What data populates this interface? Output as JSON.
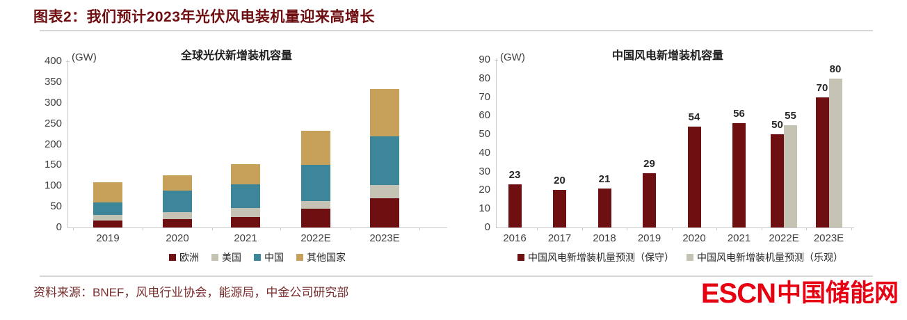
{
  "header": {
    "title": "图表2：我们预计2023年光伏风电装机量迎来高增长"
  },
  "footer": {
    "source": "资料来源：BNEF，风电行业协会，能源局，中金公司研究部",
    "logo_latin": "ESCN",
    "logo_cjk": "中国储能网"
  },
  "colors": {
    "title_maroon": "#6e0e10",
    "bar_maroon": "#6e1011",
    "bar_gray": "#c5c3b3",
    "bar_teal": "#3d8699",
    "bar_tan": "#c7a15a",
    "logo_red": "#e60012",
    "axis_gray": "#c9c9c9"
  },
  "chart_data": [
    {
      "type": "bar",
      "stacked": true,
      "title": "全球光伏新增装机容量",
      "unit": "(GW)",
      "categories": [
        "2019",
        "2020",
        "2021",
        "2022E",
        "2023E"
      ],
      "series": [
        {
          "name": "欧洲",
          "color": "#6e1011",
          "values": [
            17,
            20,
            25,
            45,
            70
          ]
        },
        {
          "name": "美国",
          "color": "#c5c3b3",
          "values": [
            13,
            17,
            22,
            18,
            32
          ]
        },
        {
          "name": "中国",
          "color": "#3d8699",
          "values": [
            30,
            51,
            57,
            87,
            118
          ]
        },
        {
          "name": "其他国家",
          "color": "#c7a15a",
          "values": [
            48,
            38,
            49,
            83,
            113
          ]
        }
      ],
      "totals": [
        108,
        126,
        153,
        233,
        333
      ],
      "ylim": [
        0,
        400
      ],
      "ytick_step": 50,
      "grid": false,
      "legend_position": "bottom",
      "data_labels": false
    },
    {
      "type": "bar",
      "stacked": false,
      "title": "中国风电新增装机容量",
      "unit": "(GW)",
      "categories": [
        "2016",
        "2017",
        "2018",
        "2019",
        "2020",
        "2021",
        "2022E",
        "2023E"
      ],
      "series": [
        {
          "name": "中国风电新增装机量预测（保守）",
          "color": "#6e1011",
          "values": [
            23,
            20,
            21,
            29,
            54,
            56,
            50,
            70
          ]
        },
        {
          "name": "中国风电新增装机量预测（乐观）",
          "color": "#c5c3b3",
          "values": [
            null,
            null,
            null,
            null,
            null,
            null,
            55,
            80
          ]
        }
      ],
      "ylim": [
        0,
        90
      ],
      "ytick_step": 10,
      "grid": false,
      "legend_position": "bottom",
      "data_labels": true
    }
  ]
}
